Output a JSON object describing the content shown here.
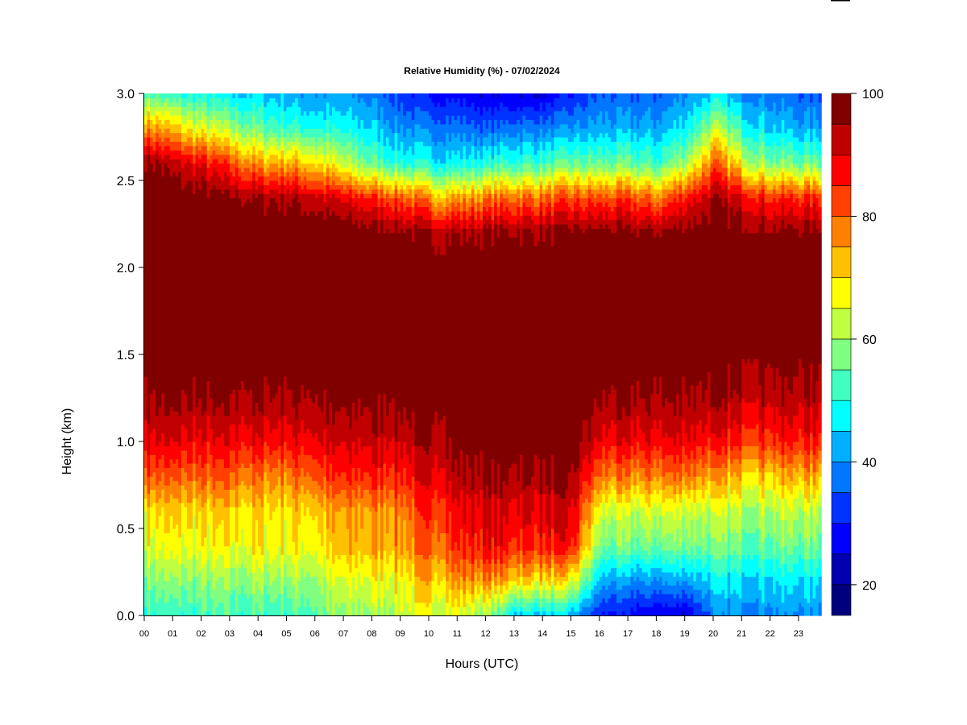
{
  "chart_data": {
    "type": "heatmap",
    "title": "Relative Humidity (%) - 07/02/2024",
    "xlabel": "Hours (UTC)",
    "ylabel": "Height (km)",
    "xlim": [
      0,
      23.8
    ],
    "ylim": [
      0,
      3.0
    ],
    "x_tick_labels": [
      "00",
      "01",
      "02",
      "03",
      "04",
      "05",
      "06",
      "07",
      "08",
      "09",
      "10",
      "11",
      "12",
      "13",
      "14",
      "15",
      "16",
      "17",
      "18",
      "19",
      "20",
      "21",
      "22",
      "23"
    ],
    "y_tick_labels": [
      "0.0",
      "0.5",
      "1.0",
      "1.5",
      "2.0",
      "2.5",
      "3.0"
    ],
    "y_ticks": [
      0.0,
      0.5,
      1.0,
      1.5,
      2.0,
      2.5,
      3.0
    ],
    "x": [
      0,
      1,
      2,
      3,
      4,
      5,
      6,
      7,
      8,
      9,
      10,
      11,
      12,
      13,
      14,
      15,
      16,
      17,
      18,
      19,
      20,
      21,
      22,
      23
    ],
    "heights": [
      0.0,
      0.2,
      0.4,
      0.6,
      0.8,
      1.0,
      1.2,
      1.4,
      1.6,
      1.8,
      2.0,
      2.2,
      2.4,
      2.6,
      2.8,
      3.0
    ],
    "values": [
      [
        52,
        58,
        66,
        70,
        82,
        90,
        95,
        98,
        100,
        100,
        100,
        100,
        100,
        97,
        78,
        55
      ],
      [
        50,
        58,
        66,
        70,
        80,
        89,
        95,
        98,
        100,
        100,
        100,
        100,
        99,
        92,
        72,
        50
      ],
      [
        52,
        58,
        66,
        70,
        80,
        88,
        94,
        98,
        100,
        100,
        100,
        100,
        98,
        88,
        65,
        48
      ],
      [
        52,
        58,
        66,
        70,
        80,
        88,
        94,
        98,
        100,
        100,
        100,
        100,
        96,
        82,
        60,
        45
      ],
      [
        52,
        60,
        68,
        70,
        78,
        88,
        94,
        98,
        100,
        100,
        100,
        100,
        95,
        75,
        55,
        45
      ],
      [
        52,
        60,
        68,
        70,
        78,
        88,
        94,
        98,
        100,
        100,
        100,
        100,
        95,
        75,
        52,
        42
      ],
      [
        55,
        60,
        68,
        72,
        82,
        90,
        95,
        98,
        100,
        100,
        100,
        100,
        92,
        70,
        50,
        40
      ],
      [
        58,
        64,
        72,
        74,
        84,
        90,
        95,
        98,
        100,
        100,
        100,
        99,
        88,
        62,
        48,
        40
      ],
      [
        60,
        66,
        74,
        76,
        86,
        92,
        96,
        99,
        100,
        100,
        100,
        98,
        85,
        55,
        45,
        38
      ],
      [
        63,
        68,
        76,
        78,
        86,
        92,
        97,
        99,
        100,
        100,
        100,
        97,
        82,
        50,
        40,
        32
      ],
      [
        64,
        72,
        80,
        84,
        90,
        94,
        98,
        100,
        100,
        100,
        99,
        95,
        75,
        48,
        38,
        28
      ],
      [
        65,
        76,
        85,
        88,
        94,
        97,
        99,
        100,
        100,
        100,
        99,
        95,
        75,
        48,
        38,
        28
      ],
      [
        58,
        76,
        88,
        90,
        96,
        99,
        100,
        100,
        100,
        100,
        100,
        96,
        78,
        50,
        35,
        25
      ],
      [
        45,
        72,
        86,
        90,
        95,
        99,
        100,
        100,
        100,
        100,
        100,
        96,
        80,
        52,
        38,
        25
      ],
      [
        45,
        70,
        86,
        90,
        95,
        99,
        100,
        100,
        100,
        100,
        100,
        96,
        80,
        52,
        38,
        25
      ],
      [
        42,
        66,
        86,
        90,
        95,
        99,
        100,
        100,
        100,
        100,
        100,
        97,
        82,
        55,
        40,
        30
      ],
      [
        30,
        42,
        56,
        64,
        78,
        88,
        94,
        98,
        100,
        100,
        100,
        97,
        82,
        55,
        42,
        35
      ],
      [
        28,
        40,
        56,
        62,
        76,
        88,
        94,
        98,
        100,
        100,
        100,
        97,
        82,
        55,
        42,
        35
      ],
      [
        25,
        40,
        56,
        64,
        78,
        88,
        94,
        97,
        100,
        100,
        100,
        96,
        78,
        52,
        42,
        35
      ],
      [
        25,
        42,
        58,
        65,
        80,
        90,
        95,
        98,
        100,
        100,
        100,
        98,
        88,
        62,
        48,
        40
      ],
      [
        38,
        46,
        56,
        62,
        74,
        86,
        93,
        97,
        100,
        100,
        100,
        99,
        94,
        80,
        62,
        45
      ],
      [
        40,
        46,
        56,
        62,
        72,
        85,
        92,
        96,
        100,
        100,
        100,
        98,
        90,
        66,
        50,
        40
      ],
      [
        40,
        46,
        56,
        62,
        72,
        85,
        92,
        96,
        100,
        100,
        100,
        97,
        85,
        58,
        45,
        38
      ],
      [
        40,
        46,
        56,
        62,
        74,
        86,
        92,
        96,
        100,
        100,
        100,
        97,
        85,
        56,
        42,
        35
      ]
    ],
    "colorbar": {
      "levels": [
        15,
        20,
        25,
        30,
        35,
        40,
        45,
        50,
        55,
        60,
        65,
        70,
        75,
        80,
        85,
        90,
        95,
        100
      ],
      "colors": [
        "#00007F",
        "#0000B0",
        "#0000FF",
        "#0033FF",
        "#0077FF",
        "#00B0FF",
        "#00FFFF",
        "#40FFC0",
        "#80FF80",
        "#C0FF40",
        "#FFFF00",
        "#FFC000",
        "#FF8000",
        "#FF4000",
        "#FF0000",
        "#C00000",
        "#800000"
      ],
      "tick_values": [
        20,
        40,
        60,
        80,
        100
      ],
      "tick_labels": [
        "20",
        "40",
        "60",
        "80",
        "100"
      ]
    },
    "grid": false
  }
}
